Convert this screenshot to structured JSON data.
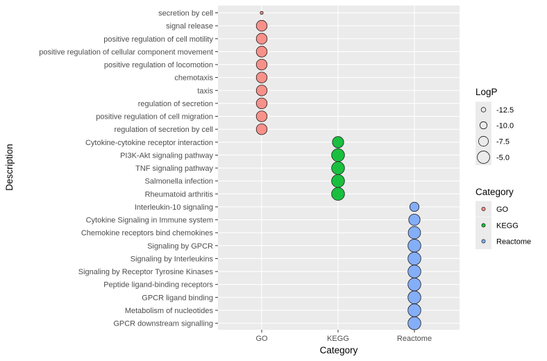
{
  "chart_data": {
    "type": "scatter",
    "xlabel": "Category",
    "ylabel": "Description",
    "x_categories": [
      "GO",
      "KEGG",
      "Reactome"
    ],
    "y_categories": [
      "secretion by cell",
      "signal release",
      "positive regulation of cell motility",
      "positive regulation of cellular component movement",
      "positive regulation of locomotion",
      "chemotaxis",
      "taxis",
      "regulation of secretion",
      "positive regulation of cell migration",
      "regulation of secretion by cell",
      "Cytokine-cytokine receptor interaction",
      "PI3K-Akt signaling pathway",
      "TNF signaling pathway",
      "Salmonella infection",
      "Rheumatoid arthritis",
      "Interleukin-10 signaling",
      "Cytokine Signaling in Immune system",
      "Chemokine receptors bind chemokines",
      "Signaling by GPCR",
      "Signaling by Interleukins",
      "Signaling by Receptor Tyrosine Kinases",
      "Peptide ligand-binding receptors",
      "GPCR ligand binding",
      "Metabolism of nucleotides",
      "GPCR downstream signalling"
    ],
    "points": [
      {
        "description": "secretion by cell",
        "category": "GO",
        "logp": -14.0
      },
      {
        "description": "signal release",
        "category": "GO",
        "logp": -6.5
      },
      {
        "description": "positive regulation of cell motility",
        "category": "GO",
        "logp": -6.5
      },
      {
        "description": "positive regulation of cellular component movement",
        "category": "GO",
        "logp": -6.5
      },
      {
        "description": "positive regulation of locomotion",
        "category": "GO",
        "logp": -6.5
      },
      {
        "description": "chemotaxis",
        "category": "GO",
        "logp": -6.5
      },
      {
        "description": "taxis",
        "category": "GO",
        "logp": -6.5
      },
      {
        "description": "regulation of secretion",
        "category": "GO",
        "logp": -6.5
      },
      {
        "description": "positive regulation of cell migration",
        "category": "GO",
        "logp": -6.5
      },
      {
        "description": "regulation of secretion by cell",
        "category": "GO",
        "logp": -6.5
      },
      {
        "description": "Cytokine-cytokine receptor interaction",
        "category": "KEGG",
        "logp": -6.0
      },
      {
        "description": "PI3K-Akt signaling pathway",
        "category": "KEGG",
        "logp": -4.5
      },
      {
        "description": "TNF signaling pathway",
        "category": "KEGG",
        "logp": -4.5
      },
      {
        "description": "Salmonella infection",
        "category": "KEGG",
        "logp": -4.5
      },
      {
        "description": "Rheumatoid arthritis",
        "category": "KEGG",
        "logp": -4.5
      },
      {
        "description": "Interleukin-10 signaling",
        "category": "Reactome",
        "logp": -8.0
      },
      {
        "description": "Cytokine Signaling in Immune system",
        "category": "Reactome",
        "logp": -6.0
      },
      {
        "description": "Chemokine receptors bind chemokines",
        "category": "Reactome",
        "logp": -5.0
      },
      {
        "description": "Signaling by GPCR",
        "category": "Reactome",
        "logp": -4.5
      },
      {
        "description": "Signaling by Interleukins",
        "category": "Reactome",
        "logp": -4.5
      },
      {
        "description": "Signaling by Receptor Tyrosine Kinases",
        "category": "Reactome",
        "logp": -4.5
      },
      {
        "description": "Peptide ligand-binding receptors",
        "category": "Reactome",
        "logp": -4.5
      },
      {
        "description": "GPCR ligand binding",
        "category": "Reactome",
        "logp": -4.5
      },
      {
        "description": "Metabolism of nucleotides",
        "category": "Reactome",
        "logp": -4.5
      },
      {
        "description": "GPCR downstream signalling",
        "category": "Reactome",
        "logp": -4.5
      }
    ],
    "size_legend": {
      "title": "LogP",
      "values": [
        -12.5,
        -10.0,
        -7.5,
        -5.0
      ],
      "labels": [
        "-12.5",
        "-10.0",
        "-7.5",
        "-5.0"
      ]
    },
    "color_legend": {
      "title": "Category",
      "entries": [
        {
          "label": "GO",
          "color": "#f8918a"
        },
        {
          "label": "KEGG",
          "color": "#1bbf3f"
        },
        {
          "label": "Reactome",
          "color": "#84aef7"
        }
      ]
    },
    "colors": {
      "panel_background": "#ebebeb",
      "grid_major": "#ffffff",
      "point_stroke": "#1a1a1a"
    },
    "grid": true,
    "legend_position": "right"
  }
}
